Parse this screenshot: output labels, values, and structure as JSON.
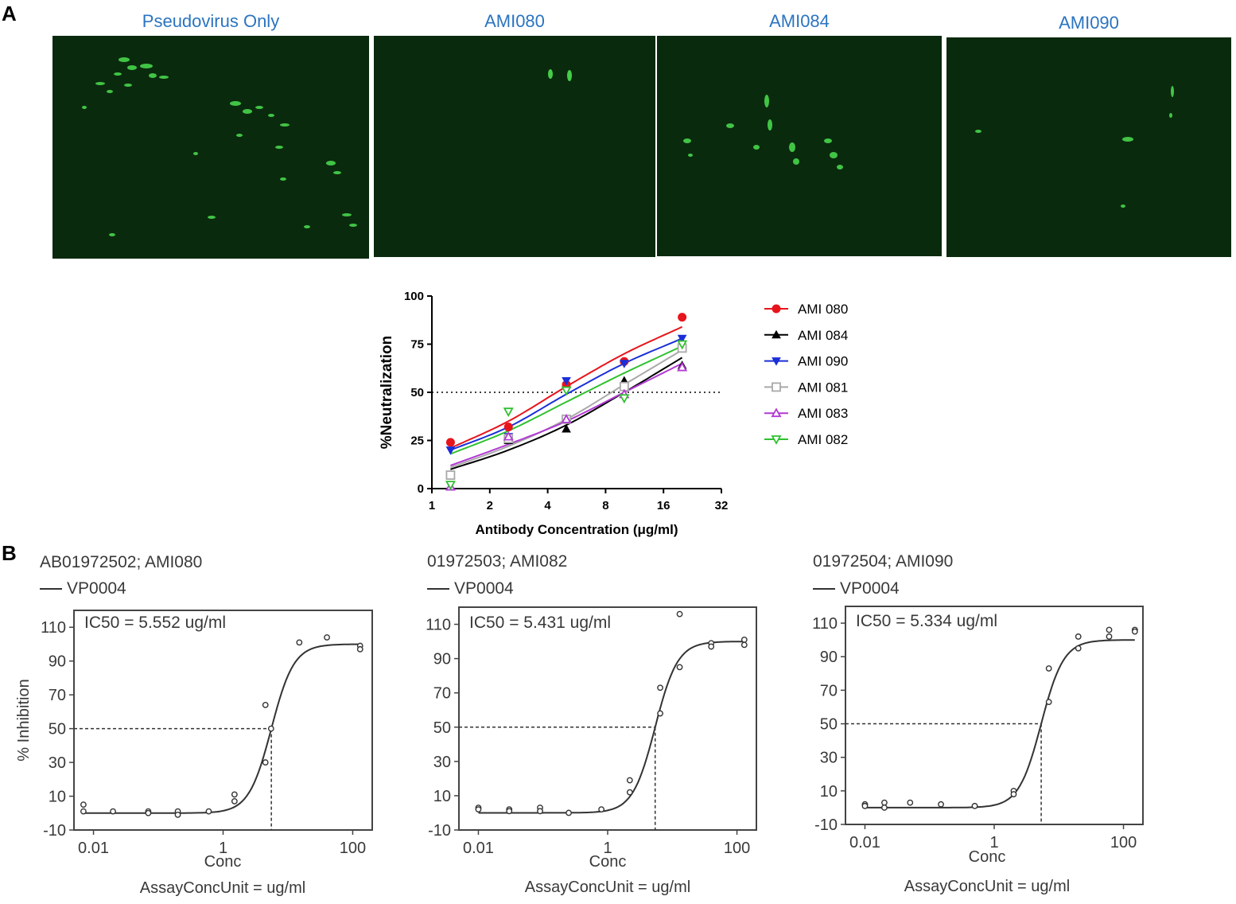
{
  "panel_labels": {
    "a": "A",
    "b": "B"
  },
  "images": [
    {
      "title": "Pseudovirus Only",
      "cells": "many"
    },
    {
      "title": "AMI080",
      "cells": "few"
    },
    {
      "title": "AMI084",
      "cells": "some"
    },
    {
      "title": "AMI090",
      "cells": "few"
    }
  ],
  "colors": {
    "title_blue": "#2b74c0",
    "micro_bg": "#0a2a0e",
    "cell_green": "#4be04f"
  },
  "chart_data": [
    {
      "type": "line",
      "id": "neutralization",
      "title": "",
      "ylabel": "%Neutralization",
      "xlabel": "Antibody Concentration (μg/ml)",
      "x_scale": "log2",
      "xlim": [
        1,
        32
      ],
      "ylim": [
        0,
        100
      ],
      "xticks": [
        1,
        2,
        4,
        8,
        16,
        32
      ],
      "yticks": [
        0,
        25,
        50,
        75,
        100
      ],
      "reference_line": 50,
      "legend_position": "right",
      "x": [
        1.25,
        2.5,
        5,
        10,
        20
      ],
      "series": [
        {
          "name": "AMI 080",
          "color": "#e8141c",
          "marker": "circle-filled",
          "values": [
            24,
            32,
            54,
            66,
            89
          ],
          "fit": [
            21,
            35,
            53,
            70,
            84
          ]
        },
        {
          "name": "AMI 084",
          "color": "#000000",
          "marker": "triangle-up-filled",
          "values": [
            1,
            25,
            31,
            56,
            64
          ],
          "fit": [
            10,
            20,
            33,
            50,
            68
          ]
        },
        {
          "name": "AMI 090",
          "color": "#1a2fd8",
          "marker": "triangle-down-filled",
          "values": [
            20,
            27,
            56,
            65,
            78
          ],
          "fit": [
            20,
            32,
            49,
            65,
            78
          ]
        },
        {
          "name": "AMI 081",
          "color": "#a9a9a9",
          "marker": "square-open",
          "values": [
            7,
            26,
            36,
            53,
            73
          ],
          "fit": [
            11,
            22,
            36,
            54,
            72
          ]
        },
        {
          "name": "AMI 083",
          "color": "#b23ad3",
          "marker": "triangle-up-open",
          "values": [
            1,
            27,
            36,
            49,
            63
          ],
          "fit": [
            12,
            23,
            35,
            50,
            65
          ]
        },
        {
          "name": "AMI 082",
          "color": "#2fc12f",
          "marker": "triangle-down-open",
          "values": [
            2,
            40,
            51,
            47,
            75
          ],
          "fit": [
            18,
            30,
            45,
            60,
            74
          ]
        }
      ]
    },
    {
      "type": "scatter",
      "id": "ami080",
      "title": "AB01972502; AMI080",
      "legend": "VP0004",
      "annotation": "IC50 = 5.552 ug/ml",
      "ylabel": "% Inhibition",
      "xlabel": "Conc",
      "unit_label": "AssayConcUnit = ug/ml",
      "x_scale": "log10",
      "xlim": [
        0.005,
        200
      ],
      "ylim": [
        -10,
        120
      ],
      "xticks": [
        0.01,
        1,
        100
      ],
      "yticks": [
        -10,
        10,
        30,
        50,
        70,
        90,
        110
      ],
      "ic50": 5.552,
      "fit": {
        "bottom": 0,
        "top": 100,
        "hill": 2.5
      },
      "points": [
        [
          0.007,
          5
        ],
        [
          0.007,
          1
        ],
        [
          0.02,
          1
        ],
        [
          0.07,
          1
        ],
        [
          0.07,
          0
        ],
        [
          0.2,
          1
        ],
        [
          0.2,
          -1
        ],
        [
          0.6,
          1
        ],
        [
          1.5,
          11
        ],
        [
          1.5,
          7
        ],
        [
          4.5,
          64
        ],
        [
          4.5,
          30
        ],
        [
          5.5,
          50
        ],
        [
          15,
          101
        ],
        [
          40,
          104
        ],
        [
          130,
          99
        ],
        [
          130,
          97
        ]
      ]
    },
    {
      "type": "scatter",
      "id": "ami082",
      "title": "01972503; AMI082",
      "legend": "VP0004",
      "annotation": "IC50 = 5.431 ug/ml",
      "ylabel": "",
      "xlabel": "Conc",
      "unit_label": "AssayConcUnit = ug/ml",
      "x_scale": "log10",
      "xlim": [
        0.005,
        200
      ],
      "ylim": [
        -10,
        120
      ],
      "xticks": [
        0.01,
        1,
        100
      ],
      "yticks": [
        -10,
        10,
        30,
        50,
        70,
        90,
        110
      ],
      "ic50": 5.431,
      "fit": {
        "bottom": 0,
        "top": 100,
        "hill": 2.5
      },
      "points": [
        [
          0.01,
          3
        ],
        [
          0.01,
          2
        ],
        [
          0.03,
          2
        ],
        [
          0.03,
          1
        ],
        [
          0.09,
          3
        ],
        [
          0.09,
          1
        ],
        [
          0.25,
          0
        ],
        [
          0.8,
          2
        ],
        [
          2.2,
          19
        ],
        [
          2.2,
          12
        ],
        [
          6.5,
          73
        ],
        [
          6.5,
          58
        ],
        [
          13,
          116
        ],
        [
          13,
          85
        ],
        [
          40,
          99
        ],
        [
          40,
          97
        ],
        [
          130,
          101
        ],
        [
          130,
          98
        ]
      ]
    },
    {
      "type": "scatter",
      "id": "ami090",
      "title": "01972504; AMI090",
      "legend": "VP0004",
      "annotation": "IC50 = 5.334 ug/ml",
      "ylabel": "",
      "xlabel": "Conc",
      "unit_label": "AssayConcUnit = ug/ml",
      "x_scale": "log10",
      "xlim": [
        0.005,
        200
      ],
      "ylim": [
        -10,
        120
      ],
      "xticks": [
        0.01,
        1,
        100
      ],
      "yticks": [
        -10,
        10,
        30,
        50,
        70,
        90,
        110
      ],
      "ic50": 5.334,
      "fit": {
        "bottom": 0,
        "top": 100,
        "hill": 2.5
      },
      "points": [
        [
          0.01,
          2
        ],
        [
          0.01,
          1
        ],
        [
          0.02,
          3
        ],
        [
          0.02,
          0
        ],
        [
          0.05,
          3
        ],
        [
          0.15,
          2
        ],
        [
          0.5,
          1
        ],
        [
          2,
          10
        ],
        [
          2,
          8
        ],
        [
          7,
          83
        ],
        [
          7,
          63
        ],
        [
          20,
          102
        ],
        [
          20,
          95
        ],
        [
          60,
          106
        ],
        [
          60,
          102
        ],
        [
          150,
          106
        ],
        [
          150,
          105
        ]
      ]
    }
  ]
}
